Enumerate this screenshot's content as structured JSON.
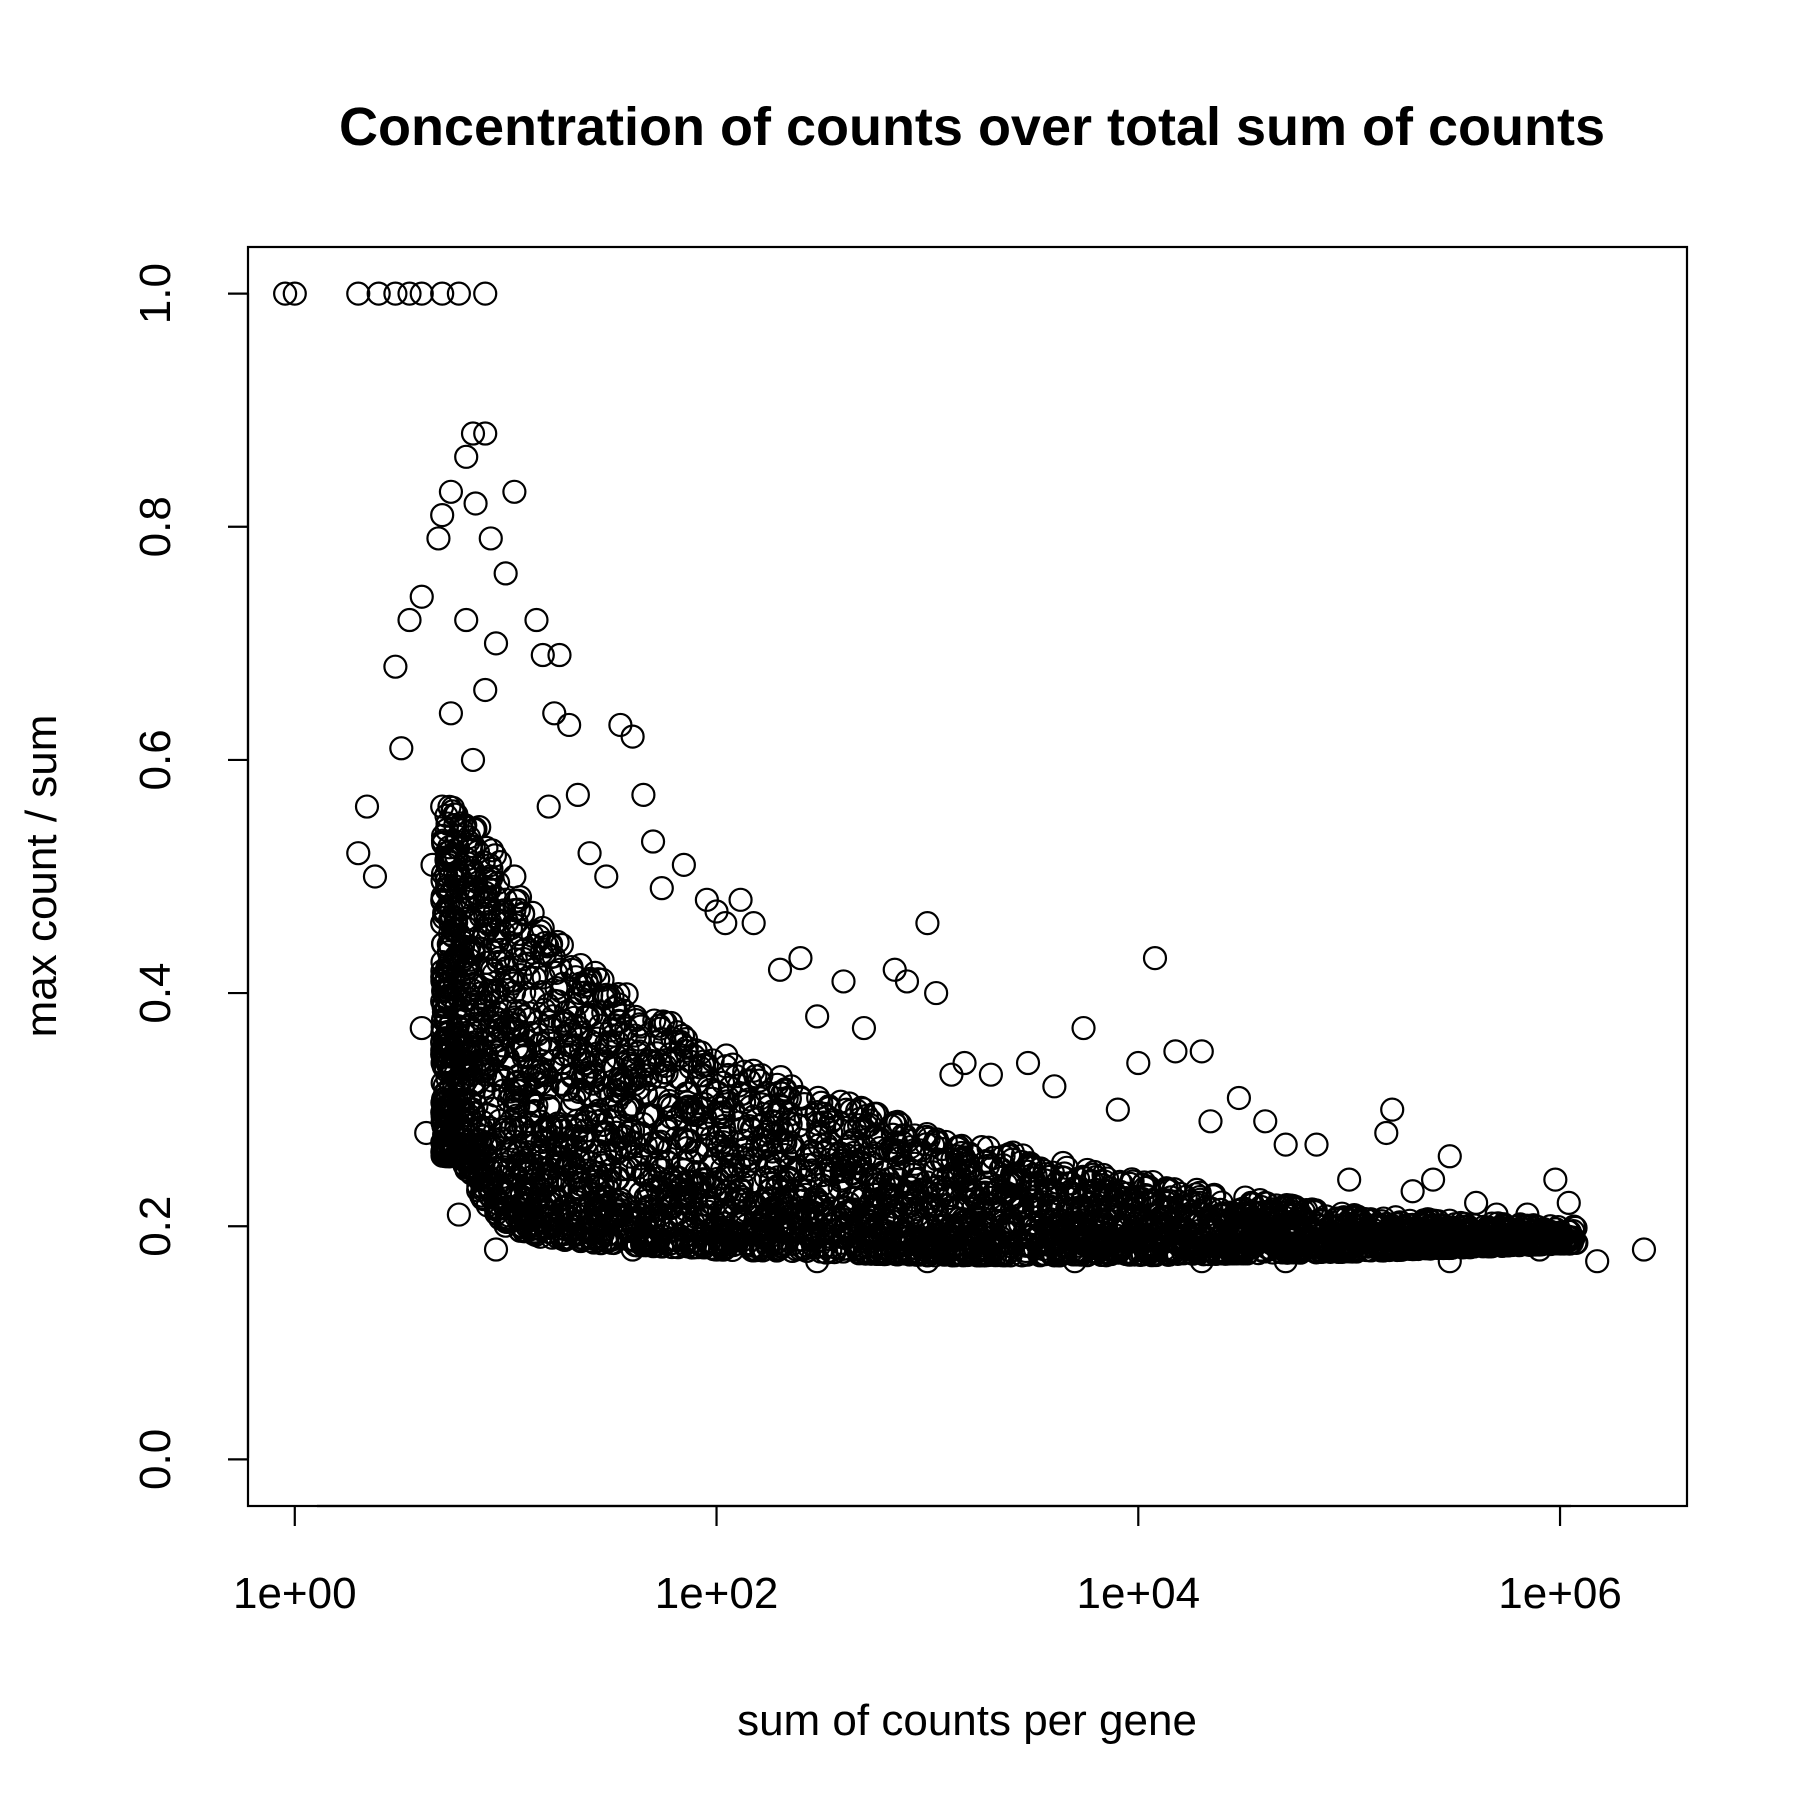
{
  "chart_data": {
    "type": "scatter",
    "title": "Concentration of counts over total sum of counts",
    "xlabel": "sum of counts per gene",
    "ylabel": "max count / sum",
    "x_scale": "log10",
    "xlim": [
      0.6,
      4000000
    ],
    "ylim": [
      -0.04,
      1.04
    ],
    "x_ticks": [
      1,
      100,
      10000,
      1000000
    ],
    "x_tick_labels": [
      "1e+00",
      "1e+02",
      "1e+04",
      "1e+06"
    ],
    "y_ticks": [
      0.0,
      0.2,
      0.4,
      0.6,
      0.8,
      1.0
    ],
    "y_tick_labels": [
      "0.0",
      "0.2",
      "0.4",
      "0.6",
      "0.8",
      "1.0"
    ],
    "grid": false,
    "legend": "none",
    "marker": "open circle",
    "color": "#000000",
    "series": [
      {
        "points": [
          [
            0.9,
            1.0
          ],
          [
            1.0,
            1.0
          ],
          [
            2.0,
            1.0
          ],
          [
            2.5,
            1.0
          ],
          [
            3.0,
            1.0
          ],
          [
            3.5,
            1.0
          ],
          [
            4.0,
            1.0
          ],
          [
            5.0,
            1.0
          ],
          [
            6.0,
            1.0
          ],
          [
            8.0,
            1.0
          ],
          [
            2.0,
            0.52
          ],
          [
            2.2,
            0.56
          ],
          [
            2.4,
            0.5
          ],
          [
            3.0,
            0.68
          ],
          [
            3.2,
            0.61
          ],
          [
            3.5,
            0.72
          ],
          [
            4.0,
            0.74
          ],
          [
            4.0,
            0.37
          ],
          [
            4.2,
            0.28
          ],
          [
            4.5,
            0.51
          ],
          [
            4.8,
            0.79
          ],
          [
            5.0,
            0.81
          ],
          [
            5.5,
            0.83
          ],
          [
            6.0,
            0.21
          ],
          [
            6.5,
            0.86
          ],
          [
            7.0,
            0.88
          ],
          [
            7.2,
            0.82
          ],
          [
            8.0,
            0.88
          ],
          [
            8.5,
            0.79
          ],
          [
            9.0,
            0.18
          ],
          [
            5.0,
            0.56
          ],
          [
            5.0,
            0.46
          ],
          [
            5.5,
            0.64
          ],
          [
            6.0,
            0.36
          ],
          [
            6.5,
            0.72
          ],
          [
            7.0,
            0.6
          ],
          [
            7.0,
            0.3
          ],
          [
            8.0,
            0.66
          ],
          [
            8.0,
            0.26
          ],
          [
            9.0,
            0.7
          ],
          [
            10.0,
            0.76
          ],
          [
            10.0,
            0.23
          ],
          [
            11.0,
            0.83
          ],
          [
            11.0,
            0.5
          ],
          [
            12.0,
            0.2
          ],
          [
            14.0,
            0.72
          ],
          [
            15.0,
            0.69
          ],
          [
            16.0,
            0.56
          ],
          [
            17.0,
            0.64
          ],
          [
            18.0,
            0.69
          ],
          [
            20.0,
            0.63
          ],
          [
            22.0,
            0.57
          ],
          [
            25.0,
            0.52
          ],
          [
            30.0,
            0.5
          ],
          [
            35.0,
            0.63
          ],
          [
            40.0,
            0.62
          ],
          [
            45.0,
            0.57
          ],
          [
            50.0,
            0.53
          ],
          [
            55.0,
            0.49
          ],
          [
            70.0,
            0.51
          ],
          [
            90.0,
            0.48
          ],
          [
            100.0,
            0.47
          ],
          [
            110.0,
            0.46
          ],
          [
            130.0,
            0.48
          ],
          [
            150.0,
            0.46
          ],
          [
            200.0,
            0.42
          ],
          [
            250.0,
            0.43
          ],
          [
            300.0,
            0.38
          ],
          [
            400.0,
            0.41
          ],
          [
            500.0,
            0.37
          ],
          [
            700.0,
            0.42
          ],
          [
            800.0,
            0.41
          ],
          [
            1000.0,
            0.46
          ],
          [
            1100.0,
            0.4
          ],
          [
            1300.0,
            0.33
          ],
          [
            1500.0,
            0.34
          ],
          [
            2000.0,
            0.33
          ],
          [
            3000.0,
            0.34
          ],
          [
            4000.0,
            0.32
          ],
          [
            5500.0,
            0.37
          ],
          [
            8000.0,
            0.3
          ],
          [
            10000.0,
            0.34
          ],
          [
            12000.0,
            0.43
          ],
          [
            15000.0,
            0.35
          ],
          [
            20000.0,
            0.35
          ],
          [
            22000.0,
            0.29
          ],
          [
            30000.0,
            0.31
          ],
          [
            40000.0,
            0.29
          ],
          [
            50000.0,
            0.27
          ],
          [
            70000.0,
            0.27
          ],
          [
            100000.0,
            0.24
          ],
          [
            150000.0,
            0.28
          ],
          [
            160000.0,
            0.3
          ],
          [
            200000.0,
            0.23
          ],
          [
            250000.0,
            0.24
          ],
          [
            300000.0,
            0.26
          ],
          [
            400000.0,
            0.22
          ],
          [
            500000.0,
            0.21
          ],
          [
            700000.0,
            0.21
          ],
          [
            900000.0,
            0.2
          ],
          [
            950000.0,
            0.24
          ],
          [
            1100000.0,
            0.22
          ],
          [
            1500000.0,
            0.17
          ],
          [
            2500000.0,
            0.18
          ],
          [
            800000.0,
            0.18
          ],
          [
            600000.0,
            0.19
          ],
          [
            300000.0,
            0.17
          ],
          [
            150000.0,
            0.18
          ],
          [
            50000.0,
            0.17
          ],
          [
            20000.0,
            0.17
          ],
          [
            5000.0,
            0.17
          ],
          [
            1000.0,
            0.17
          ],
          [
            300.0,
            0.17
          ],
          [
            100.0,
            0.18
          ],
          [
            40.0,
            0.18
          ],
          [
            20.0,
            0.19
          ],
          [
            12.0,
            0.22
          ],
          [
            9.0,
            0.25
          ],
          [
            7.0,
            0.27
          ],
          [
            6.0,
            0.3
          ]
        ]
      }
    ],
    "dense_band": {
      "x_range": [
        5,
        1200000
      ],
      "lower_bound": [
        [
          6,
          0.26
        ],
        [
          8,
          0.22
        ],
        [
          10,
          0.2
        ],
        [
          15,
          0.19
        ],
        [
          30,
          0.185
        ],
        [
          100,
          0.18
        ],
        [
          1000,
          0.175
        ],
        [
          10000,
          0.175
        ],
        [
          100000,
          0.178
        ],
        [
          1000000,
          0.185
        ]
      ],
      "upper_bound": [
        [
          6,
          0.56
        ],
        [
          8,
          0.55
        ],
        [
          10,
          0.5
        ],
        [
          15,
          0.46
        ],
        [
          30,
          0.41
        ],
        [
          100,
          0.35
        ],
        [
          1000,
          0.28
        ],
        [
          10000,
          0.24
        ],
        [
          100000,
          0.21
        ],
        [
          1000000,
          0.2
        ]
      ]
    }
  }
}
